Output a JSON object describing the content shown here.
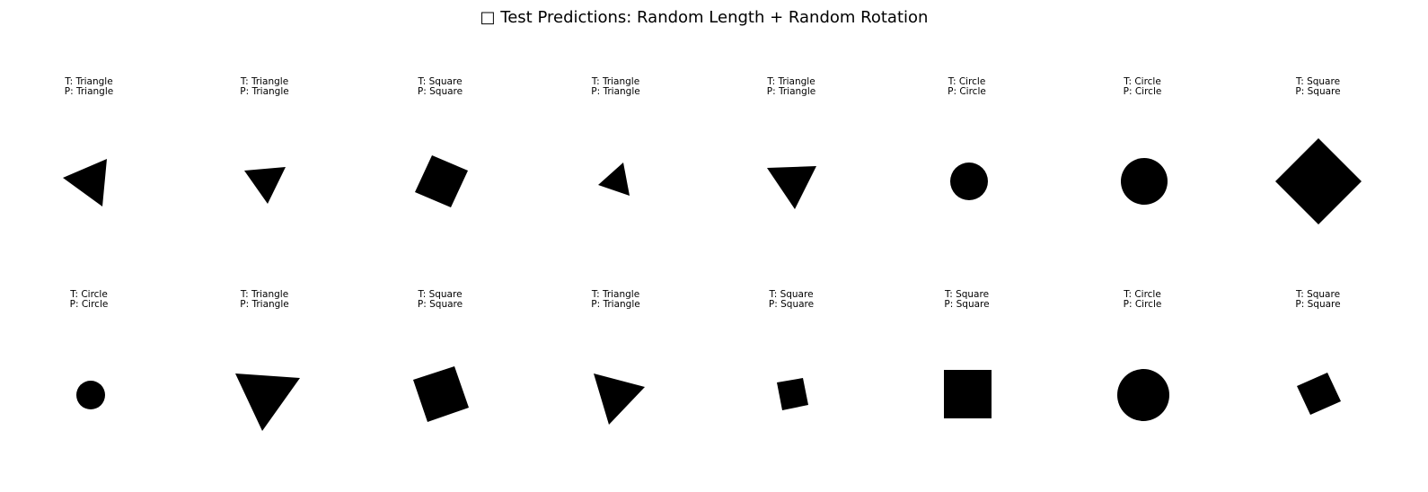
{
  "title": {
    "glyph": "□",
    "text": "Test Predictions: Random Length + Random Rotation"
  },
  "panels": [
    {
      "true_label": "T: Triangle",
      "pred_label": "P: Triangle",
      "shape": "triangle"
    },
    {
      "true_label": "T: Triangle",
      "pred_label": "P: Triangle",
      "shape": "triangle"
    },
    {
      "true_label": "T: Square",
      "pred_label": "P: Square",
      "shape": "square"
    },
    {
      "true_label": "T: Triangle",
      "pred_label": "P: Triangle",
      "shape": "triangle"
    },
    {
      "true_label": "T: Triangle",
      "pred_label": "P: Triangle",
      "shape": "triangle"
    },
    {
      "true_label": "T: Circle",
      "pred_label": "P: Circle",
      "shape": "circle"
    },
    {
      "true_label": "T: Circle",
      "pred_label": "P: Circle",
      "shape": "circle"
    },
    {
      "true_label": "T: Square",
      "pred_label": "P: Square",
      "shape": "square"
    },
    {
      "true_label": "T: Circle",
      "pred_label": "P: Circle",
      "shape": "circle"
    },
    {
      "true_label": "T: Triangle",
      "pred_label": "P: Triangle",
      "shape": "triangle"
    },
    {
      "true_label": "T: Square",
      "pred_label": "P: Square",
      "shape": "square"
    },
    {
      "true_label": "T: Triangle",
      "pred_label": "P: Triangle",
      "shape": "triangle"
    },
    {
      "true_label": "T: Square",
      "pred_label": "P: Square",
      "shape": "square"
    },
    {
      "true_label": "T: Square",
      "pred_label": "P: Square",
      "shape": "square"
    },
    {
      "true_label": "T: Circle",
      "pred_label": "P: Circle",
      "shape": "circle"
    },
    {
      "true_label": "T: Square",
      "pred_label": "P: Square",
      "shape": "square"
    }
  ],
  "colors": {
    "shape_fill": "#000000",
    "background": "#ffffff",
    "text": "#000000"
  }
}
